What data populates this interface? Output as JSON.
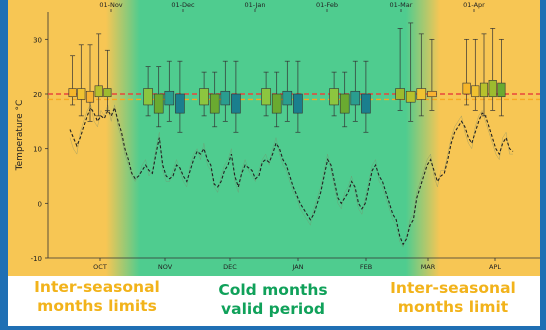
{
  "chart_data": {
    "type": "line",
    "ylabel": "Temperature °C",
    "ylim": [
      -10,
      35
    ],
    "yticks": [
      -10,
      0,
      10,
      20,
      30
    ],
    "x_bottom_ticks": [
      "OCT",
      "NOV",
      "DEC",
      "JAN",
      "FEB",
      "MAR",
      "APL"
    ],
    "x_top_ticks": [
      "01-Nov",
      "01-Dec",
      "01-Jan",
      "01-Feb",
      "01-Mar",
      "01-Apr"
    ],
    "reference_lines": [
      {
        "value": 20,
        "color": "#e8453c",
        "style": "dashed"
      },
      {
        "value": 19,
        "color": "#f6a821",
        "style": "dashed"
      }
    ],
    "regions": [
      {
        "label": "Inter-seasonal months limits",
        "color": "#f7c654",
        "from": "OCT",
        "to": "mid-NOV"
      },
      {
        "label": "Cold months valid period",
        "color": "#4fcc8f",
        "from": "mid-NOV",
        "to": "mid-MAR"
      },
      {
        "label": "Inter-seasonal months limit",
        "color": "#f7c654",
        "from": "mid-MAR",
        "to": "APL"
      }
    ],
    "boxplot_groups": [
      {
        "month": "OCT",
        "boxes": [
          {
            "low": 18,
            "q1": 19.5,
            "q3": 21,
            "high": 27,
            "color": "#f6b62b"
          },
          {
            "low": 16,
            "q1": 19,
            "q3": 21,
            "high": 29,
            "color": "#f1c232"
          },
          {
            "low": 15,
            "q1": 18.5,
            "q3": 20.5,
            "high": 29,
            "color": "#f9b233"
          },
          {
            "low": 16,
            "q1": 19.5,
            "q3": 21.5,
            "high": 31,
            "color": "#b7c12c"
          },
          {
            "low": 17,
            "q1": 19.5,
            "q3": 21,
            "high": 28,
            "color": "#9dbb2f"
          }
        ]
      },
      {
        "month": "NOV",
        "boxes": [
          {
            "low": 16,
            "q1": 18,
            "q3": 21,
            "high": 25,
            "color": "#8cc63f"
          },
          {
            "low": 14,
            "q1": 16.5,
            "q3": 20,
            "high": 25,
            "color": "#6aaa30"
          },
          {
            "low": 15,
            "q1": 18,
            "q3": 20.5,
            "high": 26,
            "color": "#2a9d8f"
          },
          {
            "low": 13,
            "q1": 16.5,
            "q3": 20,
            "high": 26,
            "color": "#1a7f8e"
          }
        ]
      },
      {
        "month": "DEC",
        "boxes": [
          {
            "low": 16,
            "q1": 18,
            "q3": 21,
            "high": 24,
            "color": "#8cc63f"
          },
          {
            "low": 14,
            "q1": 16.5,
            "q3": 20,
            "high": 24,
            "color": "#6aaa30"
          },
          {
            "low": 15,
            "q1": 18,
            "q3": 20.5,
            "high": 26,
            "color": "#2a9d8f"
          },
          {
            "low": 13,
            "q1": 16.5,
            "q3": 20,
            "high": 26,
            "color": "#1a7f8e"
          }
        ]
      },
      {
        "month": "JAN",
        "boxes": [
          {
            "low": 16,
            "q1": 18,
            "q3": 21,
            "high": 24,
            "color": "#8cc63f"
          },
          {
            "low": 14,
            "q1": 16.5,
            "q3": 20,
            "high": 24,
            "color": "#6aaa30"
          },
          {
            "low": 15,
            "q1": 18,
            "q3": 20.5,
            "high": 26,
            "color": "#2a9d8f"
          },
          {
            "low": 13,
            "q1": 16.5,
            "q3": 20,
            "high": 26,
            "color": "#1a7f8e"
          }
        ]
      },
      {
        "month": "FEB",
        "boxes": [
          {
            "low": 16,
            "q1": 18,
            "q3": 21,
            "high": 24,
            "color": "#8cc63f"
          },
          {
            "low": 14,
            "q1": 16.5,
            "q3": 20,
            "high": 24,
            "color": "#6aaa30"
          },
          {
            "low": 15,
            "q1": 18,
            "q3": 20.5,
            "high": 26,
            "color": "#2a9d8f"
          },
          {
            "low": 13,
            "q1": 16.5,
            "q3": 20,
            "high": 26,
            "color": "#1a7f8e"
          }
        ]
      },
      {
        "month": "MAR",
        "boxes": [
          {
            "low": 17,
            "q1": 19,
            "q3": 21,
            "high": 32,
            "color": "#9dbb2f"
          },
          {
            "low": 15,
            "q1": 18.5,
            "q3": 20.5,
            "high": 33,
            "color": "#b7c12c"
          },
          {
            "low": 16,
            "q1": 19,
            "q3": 21,
            "high": 31,
            "color": "#f1c232"
          },
          {
            "low": 17,
            "q1": 19.5,
            "q3": 20.5,
            "high": 30,
            "color": "#f9b233"
          }
        ]
      },
      {
        "month": "APL",
        "boxes": [
          {
            "low": 18,
            "q1": 20,
            "q3": 22,
            "high": 30,
            "color": "#f6b62b"
          },
          {
            "low": 17,
            "q1": 19.5,
            "q3": 21.5,
            "high": 30,
            "color": "#f1c232"
          },
          {
            "low": 16,
            "q1": 19.5,
            "q3": 22,
            "high": 31,
            "color": "#b7c12c"
          },
          {
            "low": 17,
            "q1": 19.5,
            "q3": 22.5,
            "high": 32,
            "color": "#9dbb2f"
          },
          {
            "low": 16,
            "q1": 19.5,
            "q3": 22,
            "high": 30,
            "color": "#6aaa30"
          }
        ]
      }
    ],
    "series": [
      {
        "style": "dashed",
        "color": "#222222",
        "values": [
          13.5,
          12,
          10.5,
          12,
          14,
          16,
          17.5,
          16.5,
          15,
          16,
          15.5,
          17,
          16,
          17.5,
          15,
          13,
          10,
          8,
          5.5,
          4.5,
          5,
          6,
          7,
          6,
          5.5,
          9,
          12,
          7,
          5,
          4.5,
          5,
          7,
          6.5,
          5,
          4,
          6,
          8,
          9.5,
          9,
          10,
          8,
          7,
          3.5,
          3,
          4,
          6,
          7,
          9,
          5,
          3,
          5.5,
          7,
          6.5,
          6,
          4.5,
          5,
          7.5,
          8,
          7.5,
          9,
          11,
          10,
          8,
          7,
          5,
          3,
          1.5,
          0,
          -1,
          -2,
          -3,
          -2,
          0,
          2,
          5,
          8,
          7,
          4,
          1,
          0,
          1,
          2,
          4,
          3,
          0,
          -1,
          0,
          3,
          6,
          7,
          5,
          4,
          2,
          0,
          -2,
          -3,
          -6,
          -7.5,
          -6.5,
          -4,
          -3,
          1,
          3,
          5,
          7,
          8,
          6,
          4,
          5,
          5.5,
          8,
          11,
          13,
          14,
          15,
          14,
          12,
          11,
          13,
          15,
          16.5,
          16,
          14,
          12,
          10,
          9,
          11,
          12,
          10,
          9.5
        ]
      },
      {
        "style": "solid-thin",
        "color": "#7a8c6a",
        "values": [
          12,
          10,
          9,
          13,
          15,
          17,
          18,
          15,
          14,
          17,
          16,
          18,
          15,
          18,
          14,
          12,
          9,
          7,
          5,
          4,
          5,
          7,
          8,
          5,
          6,
          10,
          13,
          6,
          4,
          4,
          6,
          8,
          6,
          4,
          3,
          7,
          9,
          10,
          8,
          11,
          7,
          6,
          3,
          2,
          5,
          7,
          8,
          10,
          4,
          2,
          6,
          8,
          6,
          5,
          4,
          6,
          8,
          9,
          7,
          10,
          12,
          9,
          7,
          6,
          4,
          2,
          1,
          -1,
          -2,
          -3,
          -4,
          -1,
          1,
          3,
          6,
          9,
          6,
          3,
          0,
          -1,
          2,
          3,
          5,
          2,
          -1,
          -2,
          1,
          4,
          7,
          8,
          4,
          3,
          1,
          -1,
          -3,
          -4,
          -7,
          -8,
          -6,
          -3,
          -2,
          2,
          4,
          6,
          8,
          9,
          5,
          3,
          6,
          6,
          9,
          12,
          14,
          15,
          16,
          13,
          11,
          10,
          14,
          16,
          17,
          15,
          13,
          11,
          9,
          8,
          12,
          13,
          9,
          9
        ]
      }
    ]
  },
  "captions": {
    "left": [
      "Inter-seasonal",
      "months limits"
    ],
    "center": [
      "Cold months",
      "valid period"
    ],
    "right": [
      "Inter-seasonal",
      "months limit"
    ]
  },
  "colors": {
    "frame": "#1f6fb4",
    "orange_region": "#f7c654",
    "green_region": "#4fcc8f",
    "caption_orange": "#f2b31b",
    "caption_green": "#10a15a"
  }
}
